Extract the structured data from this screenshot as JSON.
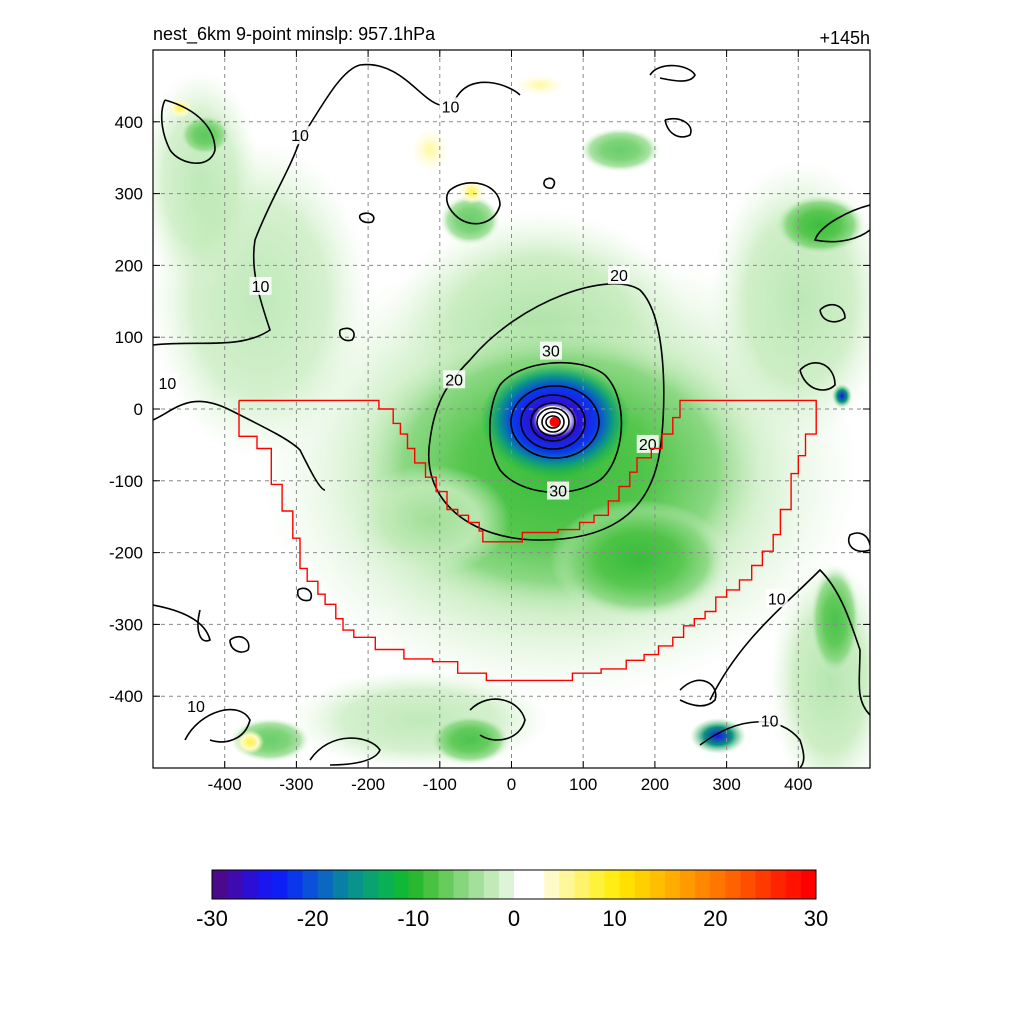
{
  "header": {
    "title_left": "nest_6km  9-point minslp: 957.1hPa",
    "title_right": "+145h"
  },
  "map": {
    "x_range": [
      -500,
      500
    ],
    "y_range": [
      -500,
      500
    ],
    "x_ticks": [
      -400,
      -300,
      -200,
      -100,
      0,
      100,
      200,
      300,
      400
    ],
    "y_ticks": [
      400,
      300,
      200,
      100,
      0,
      -100,
      -200,
      -300,
      -400
    ],
    "grid": true,
    "center_marker": {
      "x": 60,
      "y": -18,
      "color": "#ff0000"
    },
    "contour_labels": [
      {
        "text": "10",
        "x": -85,
        "y": 420
      },
      {
        "text": "10",
        "x": -295,
        "y": 380
      },
      {
        "text": "10",
        "x": -350,
        "y": 170
      },
      {
        "text": "10",
        "x": -480,
        "y": 35
      },
      {
        "text": "10",
        "x": -440,
        "y": -415
      },
      {
        "text": "10",
        "x": 370,
        "y": -265
      },
      {
        "text": "10",
        "x": 360,
        "y": -435
      },
      {
        "text": "20",
        "x": 150,
        "y": 185
      },
      {
        "text": "20",
        "x": -80,
        "y": 40
      },
      {
        "text": "20",
        "x": 190,
        "y": -50
      },
      {
        "text": "30",
        "x": 55,
        "y": 80
      },
      {
        "text": "30",
        "x": 65,
        "y": -115
      }
    ],
    "boundary_color": "#ff0000",
    "boundary": [
      [
        -380,
        12
      ],
      [
        -185,
        12
      ],
      [
        -185,
        0
      ],
      [
        -165,
        0
      ],
      [
        -165,
        -20
      ],
      [
        -155,
        -20
      ],
      [
        -155,
        -35
      ],
      [
        -145,
        -35
      ],
      [
        -145,
        -55
      ],
      [
        -135,
        -55
      ],
      [
        -135,
        -75
      ],
      [
        -120,
        -75
      ],
      [
        -120,
        -95
      ],
      [
        -105,
        -95
      ],
      [
        -105,
        -115
      ],
      [
        -90,
        -115
      ],
      [
        -90,
        -140
      ],
      [
        -75,
        -140
      ],
      [
        -75,
        -148
      ],
      [
        -60,
        -148
      ],
      [
        -60,
        -158
      ],
      [
        -45,
        -158
      ],
      [
        -45,
        -170
      ],
      [
        -40,
        -170
      ],
      [
        -40,
        -185
      ],
      [
        15,
        -185
      ],
      [
        15,
        -172
      ],
      [
        65,
        -172
      ],
      [
        65,
        -168
      ],
      [
        95,
        -168
      ],
      [
        95,
        -158
      ],
      [
        115,
        -158
      ],
      [
        115,
        -148
      ],
      [
        135,
        -148
      ],
      [
        135,
        -128
      ],
      [
        150,
        -128
      ],
      [
        150,
        -108
      ],
      [
        165,
        -108
      ],
      [
        165,
        -88
      ],
      [
        175,
        -88
      ],
      [
        175,
        -68
      ],
      [
        195,
        -68
      ],
      [
        195,
        -55
      ],
      [
        210,
        -55
      ],
      [
        210,
        -35
      ],
      [
        225,
        -35
      ],
      [
        225,
        -12
      ],
      [
        235,
        -12
      ],
      [
        235,
        12
      ],
      [
        425,
        12
      ],
      [
        425,
        -35
      ],
      [
        410,
        -35
      ],
      [
        410,
        -65
      ],
      [
        400,
        -65
      ],
      [
        400,
        -90
      ],
      [
        390,
        -90
      ],
      [
        390,
        -140
      ],
      [
        375,
        -140
      ],
      [
        375,
        -175
      ],
      [
        365,
        -175
      ],
      [
        365,
        -198
      ],
      [
        350,
        -198
      ],
      [
        350,
        -218
      ],
      [
        335,
        -218
      ],
      [
        335,
        -238
      ],
      [
        318,
        -238
      ],
      [
        318,
        -252
      ],
      [
        300,
        -252
      ],
      [
        300,
        -262
      ],
      [
        285,
        -262
      ],
      [
        285,
        -282
      ],
      [
        270,
        -282
      ],
      [
        270,
        -292
      ],
      [
        255,
        -292
      ],
      [
        255,
        -302
      ],
      [
        240,
        -302
      ],
      [
        240,
        -318
      ],
      [
        225,
        -318
      ],
      [
        225,
        -330
      ],
      [
        205,
        -330
      ],
      [
        205,
        -342
      ],
      [
        185,
        -342
      ],
      [
        185,
        -350
      ],
      [
        160,
        -350
      ],
      [
        160,
        -362
      ],
      [
        125,
        -362
      ],
      [
        125,
        -368
      ],
      [
        85,
        -368
      ],
      [
        85,
        -378
      ],
      [
        -35,
        -378
      ],
      [
        -35,
        -368
      ],
      [
        -75,
        -368
      ],
      [
        -75,
        -352
      ],
      [
        -110,
        -352
      ],
      [
        -110,
        -348
      ],
      [
        -150,
        -348
      ],
      [
        -150,
        -335
      ],
      [
        -190,
        -335
      ],
      [
        -190,
        -318
      ],
      [
        -220,
        -318
      ],
      [
        -220,
        -308
      ],
      [
        -235,
        -308
      ],
      [
        -235,
        -292
      ],
      [
        -245,
        -292
      ],
      [
        -245,
        -272
      ],
      [
        -260,
        -272
      ],
      [
        -260,
        -258
      ],
      [
        -270,
        -258
      ],
      [
        -270,
        -240
      ],
      [
        -285,
        -240
      ],
      [
        -285,
        -222
      ],
      [
        -295,
        -222
      ],
      [
        -295,
        -180
      ],
      [
        -305,
        -180
      ],
      [
        -305,
        -142
      ],
      [
        -320,
        -142
      ],
      [
        -320,
        -105
      ],
      [
        -335,
        -105
      ],
      [
        -335,
        -55
      ],
      [
        -355,
        -55
      ],
      [
        -355,
        -38
      ],
      [
        -380,
        -38
      ],
      [
        -380,
        12
      ]
    ]
  },
  "colorbar": {
    "min": -30,
    "max": 30,
    "labels": [
      "-30",
      "-20",
      "-10",
      "0",
      "10",
      "20",
      "30"
    ],
    "colors": [
      "#4b0a8c",
      "#3f0bb0",
      "#2d0fd4",
      "#1a16ee",
      "#0c1ff5",
      "#0a37ec",
      "#0a50d8",
      "#0a68c0",
      "#0a7fa6",
      "#0a938c",
      "#0aa271",
      "#0ab055",
      "#10b838",
      "#2ab830",
      "#48c240",
      "#66cc5c",
      "#86d67e",
      "#a4e09c",
      "#c2eab8",
      "#def4d8",
      "#ffffff",
      "#ffffff",
      "#fffbc8",
      "#fff79a",
      "#fff36c",
      "#fff23c",
      "#ffed14",
      "#ffe000",
      "#ffd000",
      "#ffbf00",
      "#ffad00",
      "#ff9b00",
      "#ff8800",
      "#ff7600",
      "#ff6200",
      "#ff4e00",
      "#ff3a00",
      "#ff2400",
      "#ff1200",
      "#ff0000"
    ]
  }
}
